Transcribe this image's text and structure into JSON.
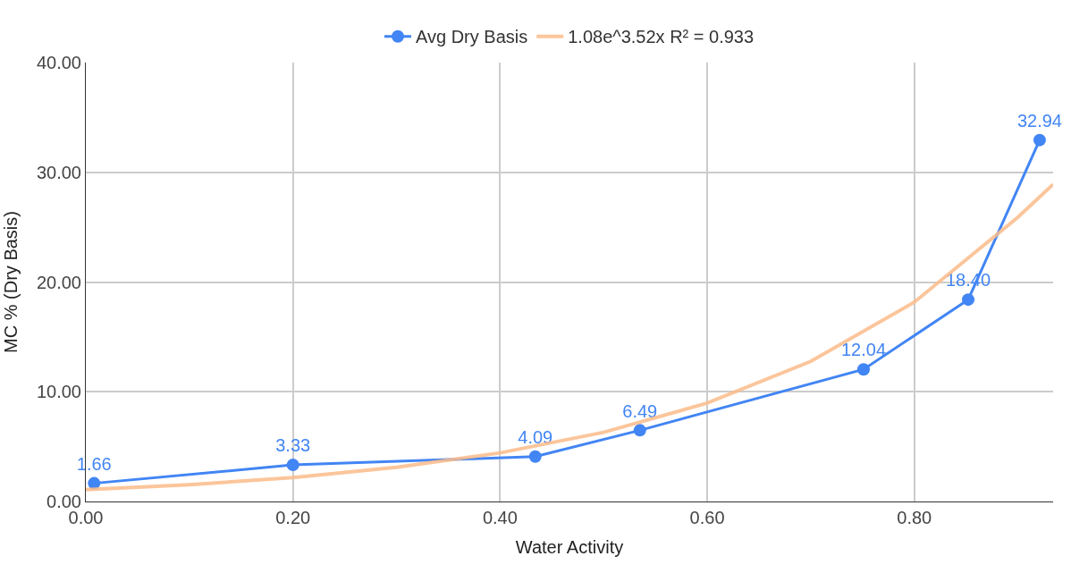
{
  "chart_data": {
    "type": "line",
    "xlabel": "Water Activity",
    "ylabel": "MC % (Dry Basis)",
    "xlim": [
      0,
      0.934
    ],
    "xticks": [
      {
        "value": 0,
        "label": "0.00"
      },
      {
        "value": 0.2,
        "label": "0.20"
      },
      {
        "value": 0.4,
        "label": "0.40"
      },
      {
        "value": 0.6,
        "label": "0.60"
      },
      {
        "value": 0.8,
        "label": "0.80"
      }
    ],
    "ylim": [
      0,
      40
    ],
    "yticks": [
      {
        "value": 0,
        "label": "0.00"
      },
      {
        "value": 10,
        "label": "10.00"
      },
      {
        "value": 20,
        "label": "20.00"
      },
      {
        "value": 30,
        "label": "30.00"
      },
      {
        "value": 40,
        "label": "40.00"
      }
    ],
    "grid": true,
    "legend": "top",
    "series": [
      {
        "name": "Avg Dry Basis",
        "color": "#4285f4",
        "marker": "circle",
        "x": [
          0.008,
          0.2,
          0.434,
          0.535,
          0.751,
          0.852,
          0.921
        ],
        "values": [
          1.66,
          3.33,
          4.09,
          6.49,
          12.04,
          18.4,
          32.94
        ],
        "value_labels": [
          "1.66",
          "3.33",
          "4.09",
          "6.49",
          "12.04",
          "18.40",
          "32.94"
        ]
      },
      {
        "name": "1.08e^3.52x R² = 0.933",
        "color": "#fbbc8a",
        "marker": "none",
        "x": [
          0,
          0.1,
          0.2,
          0.3,
          0.4,
          0.5,
          0.6,
          0.7,
          0.8,
          0.9,
          0.934
        ],
        "values": [
          1.08,
          1.53,
          2.18,
          3.11,
          4.43,
          6.3,
          8.97,
          12.77,
          18.17,
          25.9,
          28.9
        ]
      }
    ]
  }
}
